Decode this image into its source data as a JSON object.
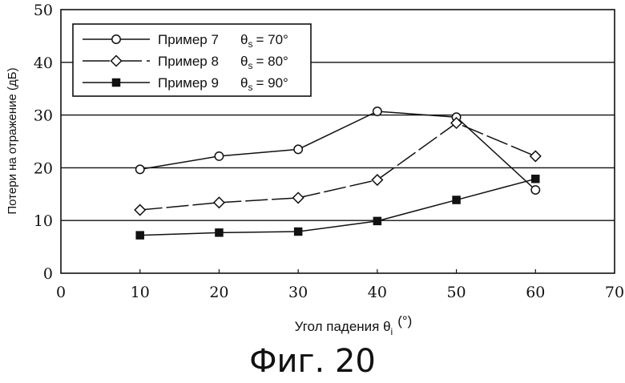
{
  "chart_data": {
    "type": "line",
    "ylabel": "Потери на отражение (дБ)",
    "xlabel_prefix": "Угол падения θ",
    "xlabel_sub": "i",
    "xlabel_unit": "(°)",
    "xlim": [
      0,
      70
    ],
    "ylim": [
      0,
      50
    ],
    "xticks": [
      0,
      10,
      20,
      30,
      40,
      50,
      60,
      70
    ],
    "yticks": [
      0,
      10,
      20,
      30,
      40,
      50
    ],
    "grid": "horizontal",
    "legend_position": "top-left",
    "series": [
      {
        "name": "Пример  7",
        "theta_label": "θ",
        "theta_sub": "s",
        "theta_value": "= 70°",
        "marker": "circle-open",
        "dash": "solid",
        "x": [
          10,
          20,
          30,
          40,
          50,
          60
        ],
        "y": [
          19.7,
          22.2,
          23.5,
          30.7,
          29.6,
          15.8
        ]
      },
      {
        "name": "Пример  8",
        "theta_label": "θ",
        "theta_sub": "s",
        "theta_value": "= 80°",
        "marker": "diamond-open",
        "dash": "long-dash",
        "x": [
          10,
          20,
          30,
          40,
          50,
          60
        ],
        "y": [
          12.0,
          13.4,
          14.3,
          17.7,
          28.5,
          22.2
        ]
      },
      {
        "name": "Пример  9",
        "theta_label": "θ",
        "theta_sub": "s",
        "theta_value": "= 90°",
        "marker": "square-filled",
        "dash": "solid",
        "x": [
          10,
          20,
          30,
          40,
          50,
          60
        ],
        "y": [
          7.2,
          7.7,
          7.9,
          9.9,
          13.9,
          17.9
        ]
      }
    ]
  },
  "caption": "Фиг. 20"
}
